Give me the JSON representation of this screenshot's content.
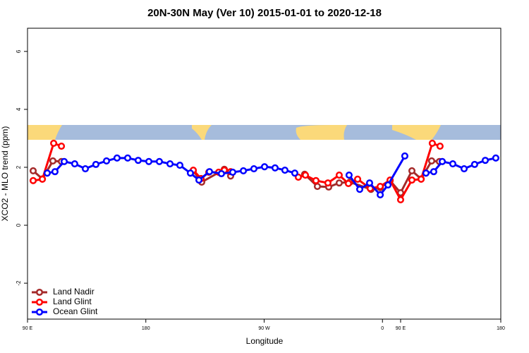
{
  "chart_data": {
    "type": "line",
    "title": "20N-30N May (Ver 10)   2015-01-01 to 2020-12-18",
    "x_label": "Longitude",
    "y_label": "XCO2 - MLO trend (ppm)",
    "xlim": [
      90,
      450
    ],
    "ylim": [
      -3.24,
      6.8
    ],
    "xticks": [
      {
        "value": 90,
        "label": "90 E"
      },
      180,
      {
        "value": 270,
        "label": "90 W"
      },
      {
        "value": 360,
        "label": "0"
      },
      {
        "value": 450,
        "label": "180"
      }
    ],
    "extra_xticks": [
      {
        "value": 373.8,
        "label": "90 E"
      }
    ],
    "yticks": [
      -2,
      0,
      2,
      4,
      6
    ],
    "legend": "bottomleft",
    "series": [
      {
        "name": "Land Nadir",
        "color": "#a52a2a",
        "x": [
          94.3,
          101.3,
          109.3,
          115.8,
          null,
          216.1,
          222.5,
          239.7,
          244.5,
          null,
          300.8,
          310.5,
          319.1,
          327.1,
          335.2,
          351.3,
          358.3,
          365.8,
          373.8,
          382.4,
          389.4,
          397.4,
          403.3
        ],
        "values": [
          1.88,
          1.6,
          2.22,
          2.2,
          null,
          1.88,
          1.49,
          1.93,
          1.7,
          null,
          1.76,
          1.34,
          1.32,
          1.46,
          1.49,
          1.24,
          1.3,
          1.54,
          1.12,
          1.88,
          1.6,
          2.22,
          2.2
        ]
      },
      {
        "name": "Land Glint",
        "color": "#ff0000",
        "x": [
          94.3,
          101.3,
          109.9,
          115.8,
          null,
          216.1,
          222.0,
          227.9,
          235.4,
          239.7,
          244.5,
          null,
          296.0,
          301.4,
          309.4,
          318.5,
          327.1,
          334.1,
          341.1,
          350.7,
          358.3,
          365.8,
          373.8,
          382.4,
          389.4,
          397.9,
          403.8
        ],
        "values": [
          1.54,
          1.59,
          2.83,
          2.73,
          null,
          1.9,
          1.61,
          1.83,
          1.83,
          1.9,
          1.85,
          null,
          1.66,
          1.73,
          1.54,
          1.46,
          1.73,
          1.44,
          1.59,
          1.27,
          1.34,
          1.56,
          0.88,
          1.56,
          1.59,
          2.83,
          2.73
        ]
      },
      {
        "name": "Ocean Glint",
        "color": "#0000ff",
        "x": [
          105.0,
          110.9,
          117.9,
          125.9,
          134.0,
          142.0,
          150.1,
          158.1,
          166.2,
          174.2,
          182.3,
          190.3,
          198.4,
          205.9,
          213.9,
          220.4,
          228.4,
          237.5,
          246.1,
          254.2,
          262.2,
          270.3,
          278.3,
          285.8,
          293.3,
          null,
          334.6,
          342.7,
          350.2,
          358.3,
          364.2,
          377.0,
          null,
          393.1,
          399.0,
          405.5,
          413.5,
          422.1,
          430.1,
          438.2,
          446.2
        ],
        "values": [
          1.8,
          1.85,
          2.2,
          2.12,
          1.95,
          2.1,
          2.22,
          2.32,
          2.32,
          2.24,
          2.2,
          2.2,
          2.12,
          2.07,
          1.8,
          1.56,
          1.85,
          1.78,
          1.83,
          1.88,
          1.95,
          2.02,
          1.98,
          1.9,
          1.8,
          null,
          1.73,
          1.24,
          1.46,
          1.05,
          1.39,
          2.39,
          null,
          1.8,
          1.85,
          2.2,
          2.12,
          1.95,
          2.1,
          2.24,
          2.32
        ]
      }
    ]
  }
}
